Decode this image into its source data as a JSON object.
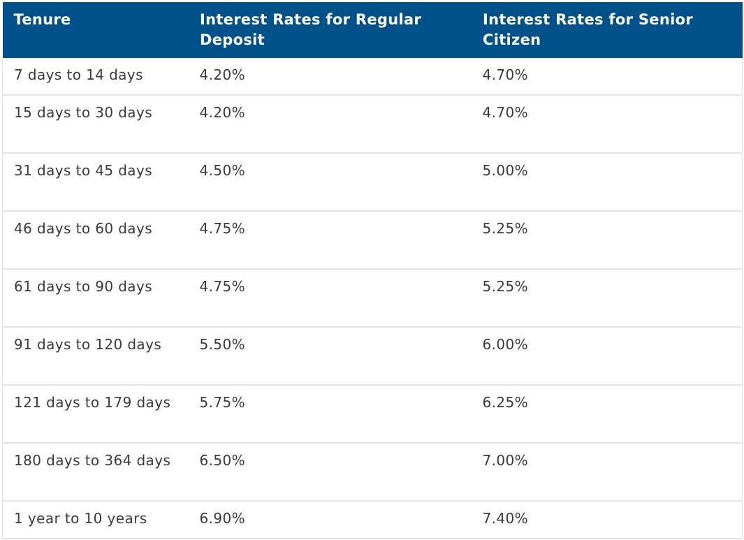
{
  "table": {
    "headers": [
      "Tenure",
      "Interest Rates for Regular Deposit",
      "Interest Rates for Senior Citizen"
    ],
    "rows": [
      {
        "tenure": "7 days to 14 days",
        "regular": "4.20%",
        "senior": "4.70%"
      },
      {
        "tenure": "15 days to 30 days",
        "regular": "4.20%",
        "senior": "4.70%"
      },
      {
        "tenure": "31 days to 45 days",
        "regular": "4.50%",
        "senior": "5.00%"
      },
      {
        "tenure": "46 days to 60 days",
        "regular": "4.75%",
        "senior": "5.25%"
      },
      {
        "tenure": "61 days to 90 days",
        "regular": "4.75%",
        "senior": "5.25%"
      },
      {
        "tenure": "91 days to 120 days",
        "regular": "5.50%",
        "senior": "6.00%"
      },
      {
        "tenure": "121 days to 179 days",
        "regular": "5.75%",
        "senior": "6.25%"
      },
      {
        "tenure": "180 days to 364 days",
        "regular": "6.50%",
        "senior": "7.00%"
      },
      {
        "tenure": "1 year to 10 years",
        "regular": "6.90%",
        "senior": "7.40%"
      }
    ]
  },
  "colors": {
    "header_bg": "#00508a",
    "header_text": "#ffffff",
    "body_text": "#3a3a3a",
    "row_border": "#e3e3e3"
  }
}
